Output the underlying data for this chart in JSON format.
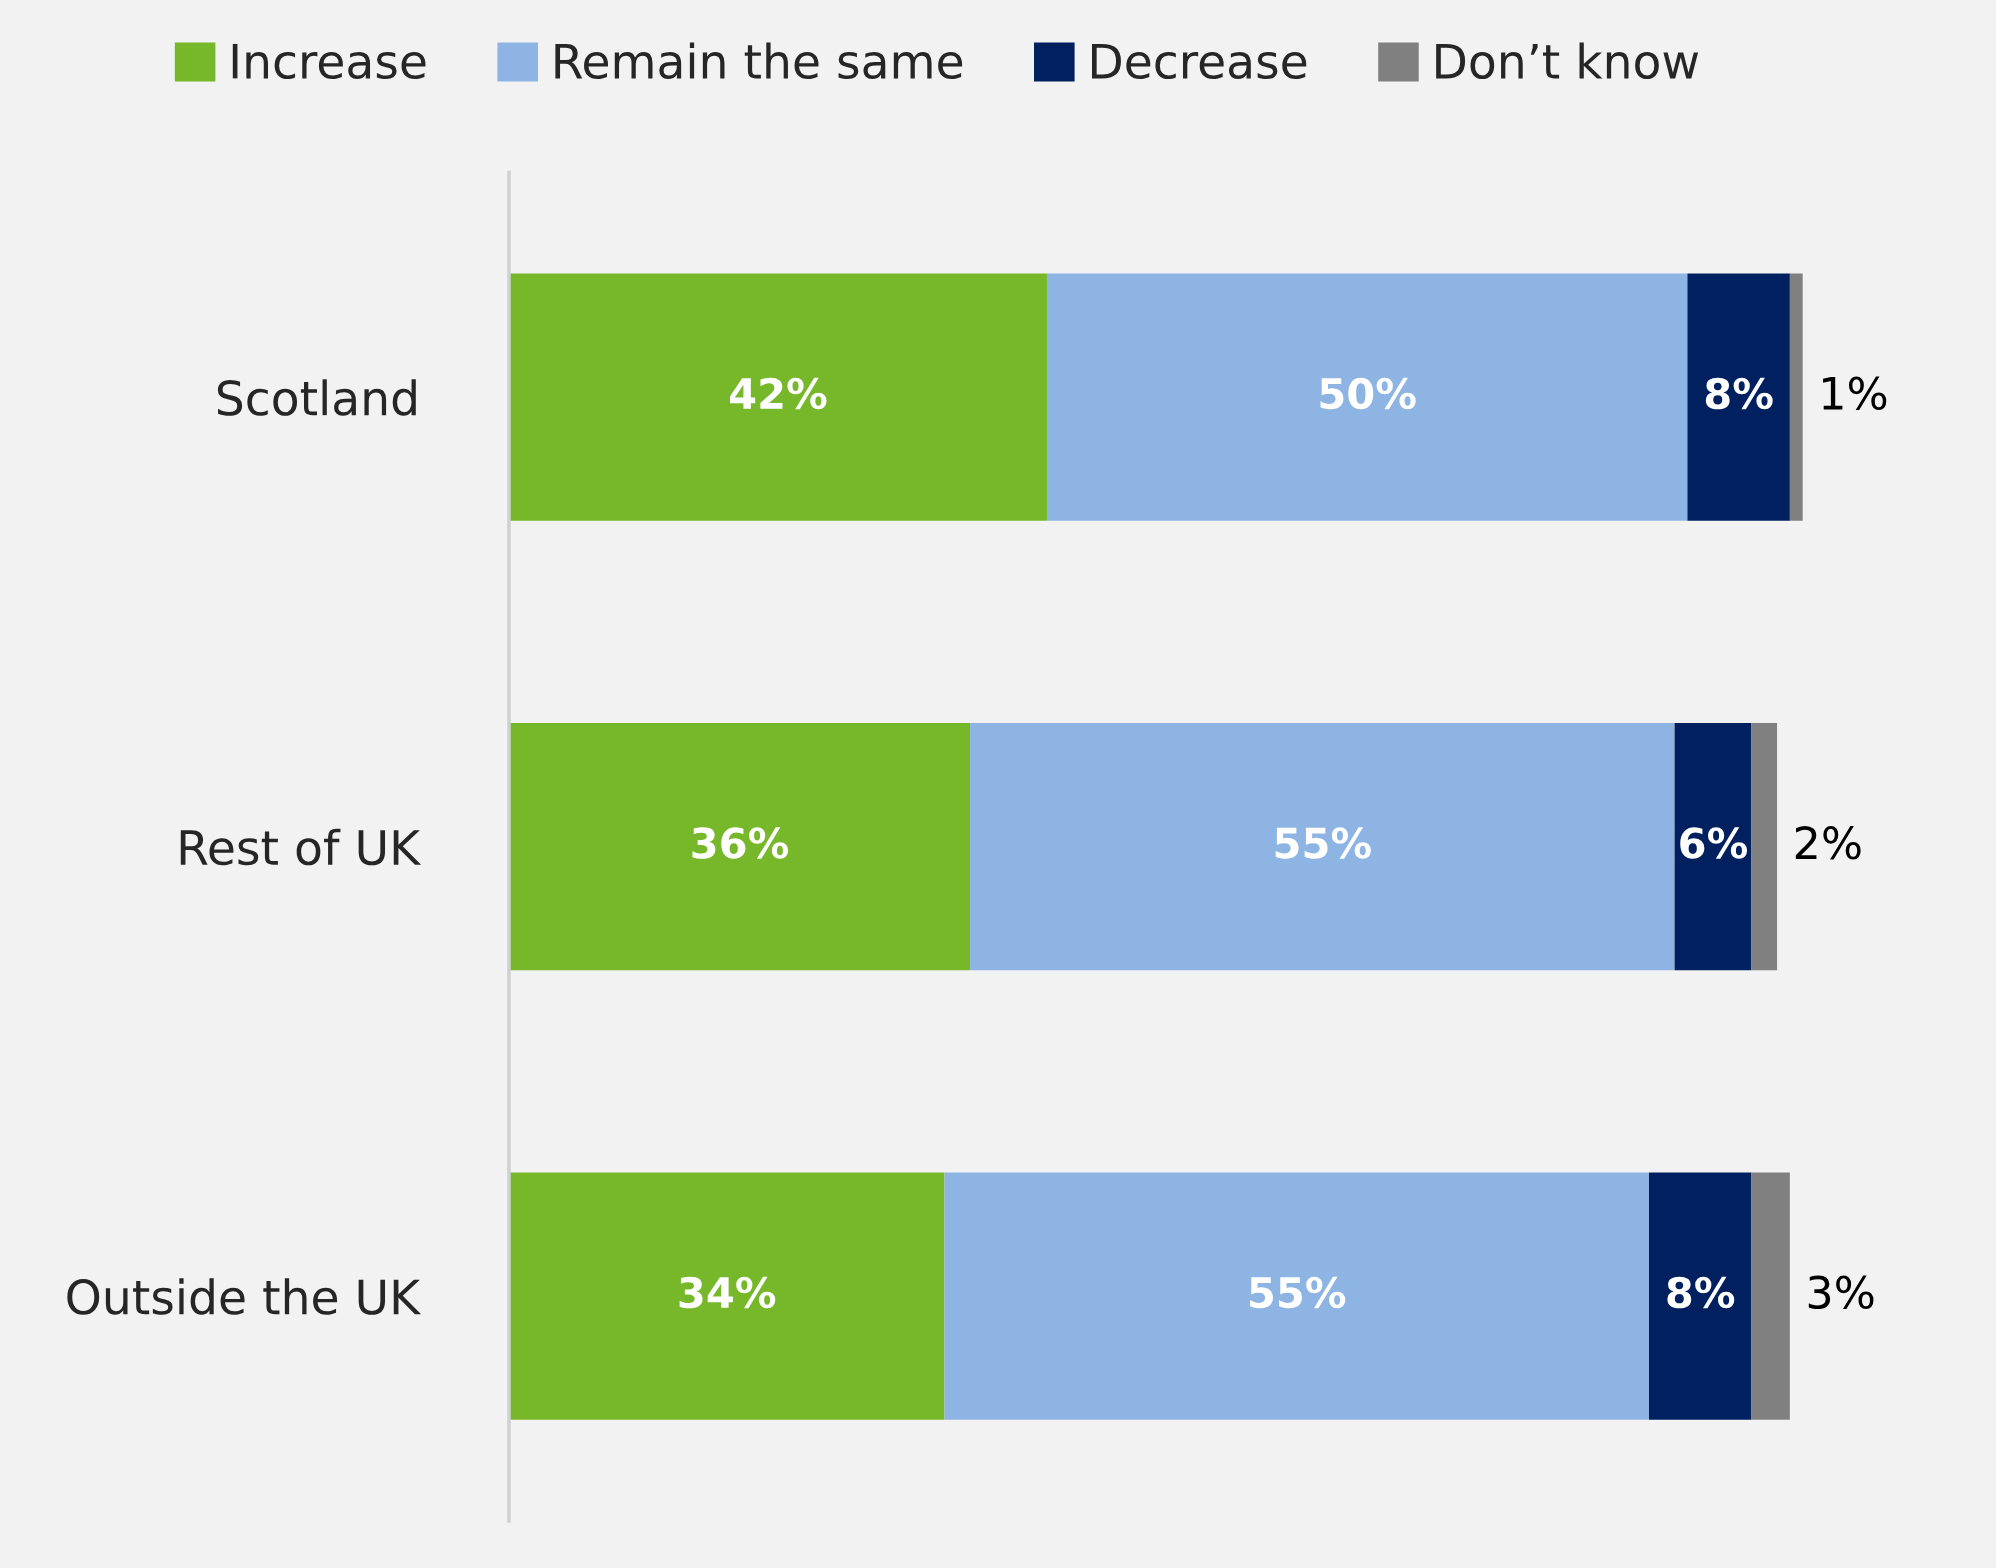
{
  "chart_data": {
    "type": "bar",
    "orientation": "horizontal",
    "stacked": true,
    "legend": "top",
    "grid": false,
    "categories": [
      "Scotland",
      "Rest of UK",
      "Outside the UK"
    ],
    "series": [
      {
        "name": "Increase",
        "color": "#76b82a",
        "values": [
          42,
          36,
          34
        ],
        "value_labels": [
          "42%",
          "36%",
          "34%"
        ]
      },
      {
        "name": "Remain the same",
        "color": "#8eb4e3",
        "values": [
          50,
          55,
          55
        ],
        "value_labels": [
          "50%",
          "55%",
          "55%"
        ]
      },
      {
        "name": "Decrease",
        "color": "#002060",
        "values": [
          8,
          6,
          8
        ],
        "value_labels": [
          "8%",
          "6%",
          "8%"
        ]
      },
      {
        "name": "Don’t know",
        "color": "#808080",
        "values": [
          1,
          2,
          3
        ],
        "value_labels": [
          "1%",
          "2%",
          "3%"
        ]
      }
    ]
  }
}
